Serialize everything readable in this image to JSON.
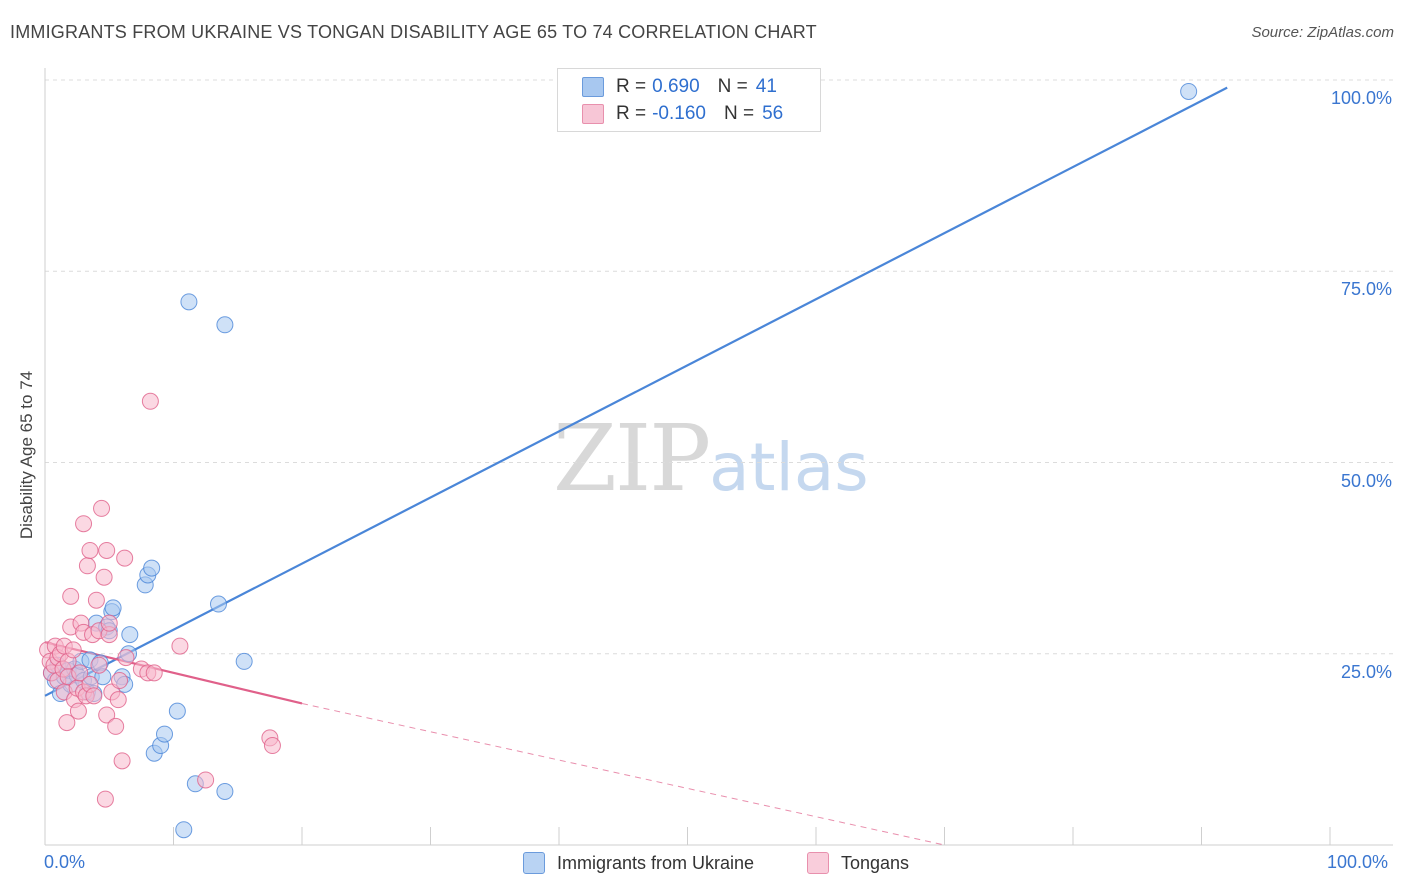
{
  "title": "IMMIGRANTS FROM UKRAINE VS TONGAN DISABILITY AGE 65 TO 74 CORRELATION CHART",
  "source": "Source: ZipAtlas.com",
  "watermark": {
    "zip": "ZIP",
    "atlas": "atlas"
  },
  "legend": {
    "rows": [
      {
        "r_label": "R =",
        "r_value": "0.690",
        "n_label": "N =",
        "n_value": "41",
        "color": "#a8c8f0"
      },
      {
        "r_label": "R =",
        "r_value": "-0.160",
        "n_label": "N =",
        "n_value": "56",
        "color": "#f7b8cc"
      }
    ]
  },
  "bottom_legend": [
    {
      "label": "Immigrants from Ukraine",
      "color": "#a8c8f0"
    },
    {
      "label": "Tongans",
      "color": "#f7b8cc"
    }
  ],
  "chart_data": {
    "type": "scatter",
    "title": "IMMIGRANTS FROM UKRAINE VS TONGAN DISABILITY AGE 65 TO 74 CORRELATION CHART",
    "xlabel": "",
    "ylabel": "Disability Age 65 to 74",
    "xlim": [
      0,
      100
    ],
    "ylim": [
      0,
      100
    ],
    "x_tick_labels": [
      "0.0%",
      "100.0%"
    ],
    "y_tick_labels": [
      {
        "value": 25,
        "label": "25.0%"
      },
      {
        "value": 50,
        "label": "50.0%"
      },
      {
        "value": 75,
        "label": "75.0%"
      },
      {
        "value": 100,
        "label": "100.0%"
      }
    ],
    "series": [
      {
        "name": "Immigrants from Ukraine",
        "color": "#4a86d8",
        "fill": "#a8c8f0",
        "trend": {
          "x0": 0,
          "y0": 19.5,
          "x1": 92,
          "y1": 99,
          "dashed_to": null
        },
        "points": [
          [
            0.5,
            22.5
          ],
          [
            0.8,
            21.5
          ],
          [
            1.0,
            23.5
          ],
          [
            1.2,
            19.8
          ],
          [
            1.5,
            22.0
          ],
          [
            1.8,
            22.8
          ],
          [
            2.0,
            21.0
          ],
          [
            2.3,
            23.0
          ],
          [
            2.5,
            22.2
          ],
          [
            2.8,
            24.0
          ],
          [
            3.0,
            21.5
          ],
          [
            3.3,
            20.0
          ],
          [
            3.5,
            24.2
          ],
          [
            3.6,
            22.0
          ],
          [
            3.8,
            19.8
          ],
          [
            4.0,
            29.0
          ],
          [
            4.3,
            23.8
          ],
          [
            4.5,
            22.0
          ],
          [
            4.8,
            28.5
          ],
          [
            5.0,
            28.0
          ],
          [
            5.2,
            30.5
          ],
          [
            5.3,
            31.0
          ],
          [
            6.0,
            22.0
          ],
          [
            6.2,
            21.0
          ],
          [
            6.5,
            25.0
          ],
          [
            6.6,
            27.5
          ],
          [
            7.8,
            34.0
          ],
          [
            8.0,
            35.3
          ],
          [
            8.3,
            36.2
          ],
          [
            8.5,
            12.0
          ],
          [
            9.0,
            13.0
          ],
          [
            9.3,
            14.5
          ],
          [
            10.3,
            17.5
          ],
          [
            10.8,
            2.0
          ],
          [
            11.2,
            71.0
          ],
          [
            11.7,
            8.0
          ],
          [
            13.5,
            31.5
          ],
          [
            14.0,
            68.0
          ],
          [
            14.0,
            7.0
          ],
          [
            15.5,
            24.0
          ],
          [
            89.0,
            98.5
          ]
        ]
      },
      {
        "name": "Tongans",
        "color": "#e0608a",
        "fill": "#f7b8cc",
        "trend": {
          "x0": 0,
          "y0": 26.5,
          "x1": 20,
          "y1": 18.5,
          "dashed_to": {
            "x": 70,
            "y": 0
          }
        },
        "points": [
          [
            0.2,
            25.5
          ],
          [
            0.4,
            24.0
          ],
          [
            0.5,
            22.5
          ],
          [
            0.7,
            23.5
          ],
          [
            0.8,
            26.0
          ],
          [
            1.0,
            24.5
          ],
          [
            1.0,
            21.5
          ],
          [
            1.2,
            25.0
          ],
          [
            1.4,
            23.0
          ],
          [
            1.5,
            26.0
          ],
          [
            1.5,
            20.0
          ],
          [
            1.7,
            16.0
          ],
          [
            1.8,
            24.0
          ],
          [
            1.8,
            22.0
          ],
          [
            2.0,
            28.5
          ],
          [
            2.0,
            32.5
          ],
          [
            2.2,
            25.5
          ],
          [
            2.3,
            19.0
          ],
          [
            2.5,
            20.5
          ],
          [
            2.6,
            17.5
          ],
          [
            2.7,
            22.5
          ],
          [
            2.8,
            29.0
          ],
          [
            3.0,
            27.8
          ],
          [
            3.0,
            42.0
          ],
          [
            3.0,
            20.0
          ],
          [
            3.2,
            19.5
          ],
          [
            3.3,
            36.5
          ],
          [
            3.5,
            38.5
          ],
          [
            3.5,
            21.0
          ],
          [
            3.7,
            27.5
          ],
          [
            3.8,
            19.5
          ],
          [
            4.0,
            32.0
          ],
          [
            4.2,
            28.0
          ],
          [
            4.2,
            23.5
          ],
          [
            4.4,
            44.0
          ],
          [
            4.6,
            35.0
          ],
          [
            4.7,
            6.0
          ],
          [
            4.8,
            38.5
          ],
          [
            4.8,
            17.0
          ],
          [
            5.0,
            27.5
          ],
          [
            5.0,
            29.0
          ],
          [
            5.2,
            20.0
          ],
          [
            5.5,
            15.5
          ],
          [
            5.7,
            19.0
          ],
          [
            5.8,
            21.5
          ],
          [
            6.0,
            11.0
          ],
          [
            6.2,
            37.5
          ],
          [
            6.3,
            24.5
          ],
          [
            7.5,
            23.0
          ],
          [
            8.0,
            22.5
          ],
          [
            8.2,
            58.0
          ],
          [
            8.5,
            22.5
          ],
          [
            10.5,
            26.0
          ],
          [
            12.5,
            8.5
          ],
          [
            17.5,
            14.0
          ],
          [
            17.7,
            13.0
          ]
        ]
      }
    ]
  }
}
